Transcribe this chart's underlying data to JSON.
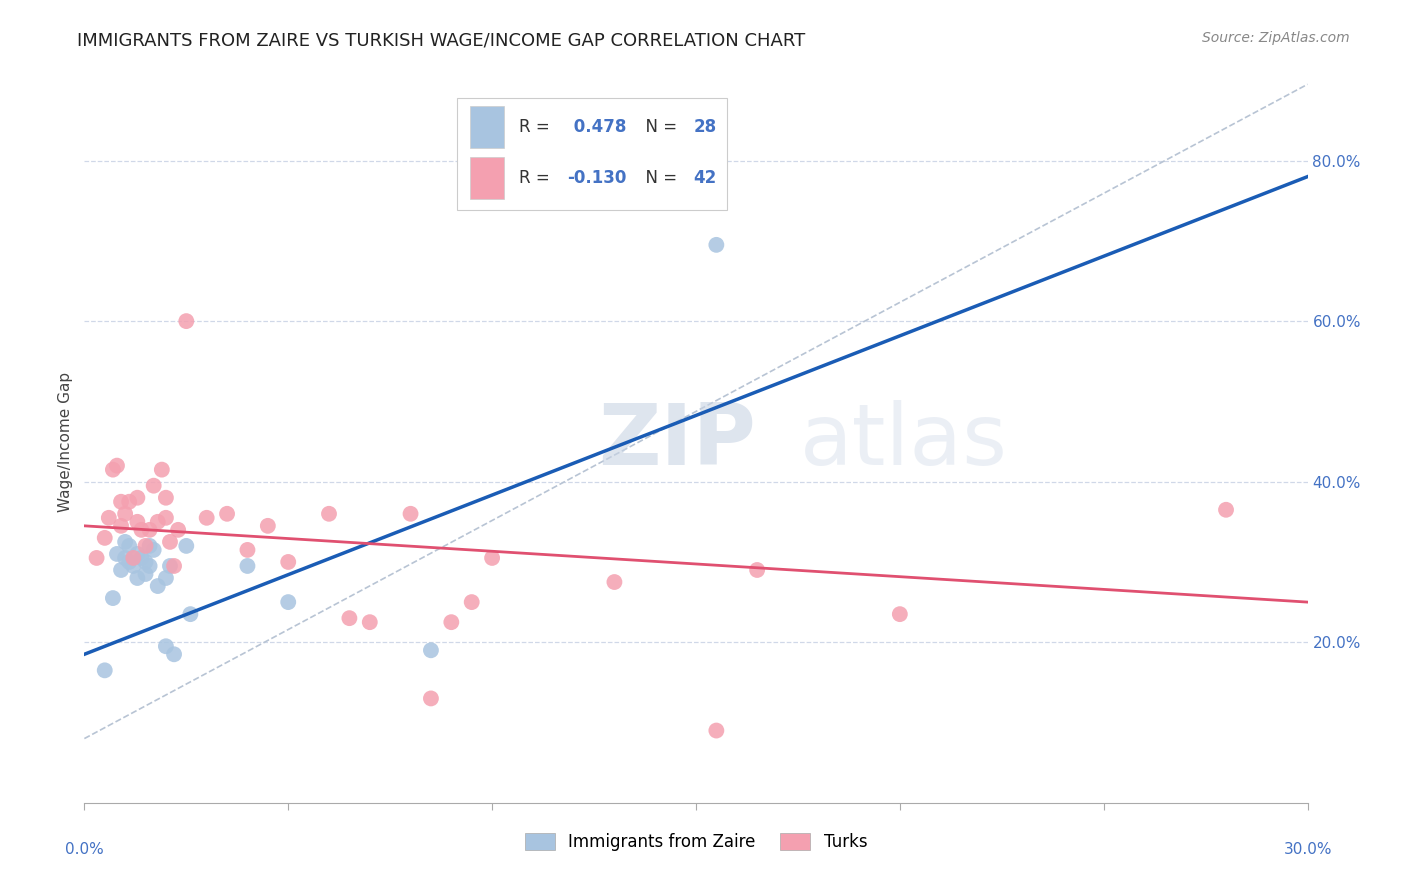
{
  "title": "IMMIGRANTS FROM ZAIRE VS TURKISH WAGE/INCOME GAP CORRELATION CHART",
  "source": "Source: ZipAtlas.com",
  "ylabel": "Wage/Income Gap",
  "xlim": [
    0.0,
    0.3
  ],
  "ylim": [
    0.0,
    0.9
  ],
  "right_ytick_labels": [
    "20.0%",
    "40.0%",
    "60.0%",
    "80.0%"
  ],
  "right_ytick_values": [
    0.2,
    0.4,
    0.6,
    0.8
  ],
  "legend_r_blue": "0.478",
  "legend_n_blue": "28",
  "legend_r_pink": "-0.130",
  "legend_n_pink": "42",
  "legend_label_blue": "Immigrants from Zaire",
  "legend_label_pink": "Turks",
  "blue_color": "#a8c4e0",
  "pink_color": "#f4a0b0",
  "blue_line_color": "#1a5cb5",
  "pink_line_color": "#e05070",
  "dash_line_color": "#b8c4d4",
  "watermark_zip": "ZIP",
  "watermark_atlas": "atlas",
  "blue_points_x": [
    0.005,
    0.007,
    0.008,
    0.009,
    0.01,
    0.01,
    0.011,
    0.011,
    0.012,
    0.013,
    0.013,
    0.014,
    0.015,
    0.015,
    0.016,
    0.016,
    0.017,
    0.018,
    0.02,
    0.02,
    0.021,
    0.022,
    0.025,
    0.026,
    0.04,
    0.05,
    0.085,
    0.155
  ],
  "blue_points_y": [
    0.165,
    0.255,
    0.31,
    0.29,
    0.305,
    0.325,
    0.3,
    0.32,
    0.295,
    0.28,
    0.31,
    0.305,
    0.285,
    0.3,
    0.32,
    0.295,
    0.315,
    0.27,
    0.28,
    0.195,
    0.295,
    0.185,
    0.32,
    0.235,
    0.295,
    0.25,
    0.19,
    0.695
  ],
  "pink_points_x": [
    0.003,
    0.005,
    0.006,
    0.007,
    0.008,
    0.009,
    0.009,
    0.01,
    0.011,
    0.012,
    0.013,
    0.013,
    0.014,
    0.015,
    0.016,
    0.017,
    0.018,
    0.019,
    0.02,
    0.02,
    0.021,
    0.022,
    0.023,
    0.025,
    0.03,
    0.035,
    0.04,
    0.045,
    0.05,
    0.06,
    0.065,
    0.07,
    0.08,
    0.085,
    0.09,
    0.095,
    0.1,
    0.13,
    0.155,
    0.165,
    0.2,
    0.28
  ],
  "pink_points_y": [
    0.305,
    0.33,
    0.355,
    0.415,
    0.42,
    0.345,
    0.375,
    0.36,
    0.375,
    0.305,
    0.35,
    0.38,
    0.34,
    0.32,
    0.34,
    0.395,
    0.35,
    0.415,
    0.355,
    0.38,
    0.325,
    0.295,
    0.34,
    0.6,
    0.355,
    0.36,
    0.315,
    0.345,
    0.3,
    0.36,
    0.23,
    0.225,
    0.36,
    0.13,
    0.225,
    0.25,
    0.305,
    0.275,
    0.09,
    0.29,
    0.235,
    0.365
  ],
  "blue_trend_x": [
    0.0,
    0.3
  ],
  "blue_trend_y": [
    0.185,
    0.78
  ],
  "pink_trend_x": [
    0.0,
    0.3
  ],
  "pink_trend_y": [
    0.345,
    0.25
  ],
  "dash_trend_x": [
    0.0,
    0.3
  ],
  "dash_trend_y": [
    0.08,
    0.895
  ],
  "background_color": "#ffffff",
  "grid_color": "#d0d8e8",
  "title_fontsize": 13,
  "source_fontsize": 10,
  "axis_label_fontsize": 11,
  "tick_fontsize": 11,
  "legend_fontsize": 12,
  "marker_size": 130
}
